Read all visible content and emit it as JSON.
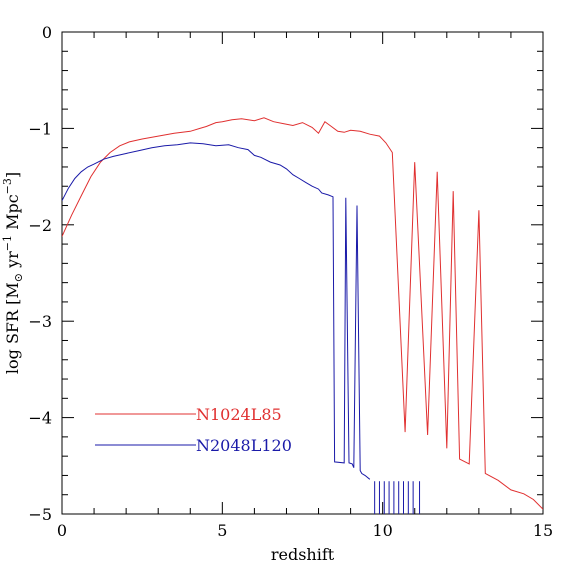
{
  "chart_data": {
    "type": "line",
    "xlabel": "redshift",
    "ylabel_parts": {
      "prefix": "log SFR [M",
      "sub": "⊙",
      "mid1": " yr",
      "sup1": "−1",
      "mid2": " Mpc",
      "sup2": "−3",
      "suffix": "]"
    },
    "xlim": [
      0,
      15
    ],
    "ylim": [
      -5,
      0
    ],
    "xticks": [
      0,
      5,
      10,
      15
    ],
    "yticks": [
      -5,
      -4,
      -3,
      -2,
      -1,
      0
    ],
    "xtick_labels": [
      "0",
      "5",
      "10",
      "15"
    ],
    "ytick_labels": [
      "−5",
      "−4",
      "−3",
      "−2",
      "−1",
      "0"
    ],
    "grid": false,
    "legend_placement": "bottom-left",
    "series": [
      {
        "name": "N1024L85",
        "color": "#e03030",
        "x": [
          0.0,
          0.3,
          0.6,
          0.9,
          1.2,
          1.5,
          1.8,
          2.1,
          2.5,
          3.0,
          3.5,
          4.0,
          4.3,
          4.5,
          4.8,
          5.0,
          5.3,
          5.6,
          6.0,
          6.3,
          6.6,
          6.9,
          7.2,
          7.5,
          7.8,
          8.0,
          8.2,
          8.4,
          8.6,
          8.8,
          9.0,
          9.3,
          9.6,
          9.9,
          10.1,
          10.3,
          10.7,
          11.0,
          11.4,
          11.7,
          12.0,
          12.2,
          12.4,
          12.7,
          13.0,
          13.2,
          13.6,
          14.0,
          14.4,
          14.7,
          15.0
        ],
        "y": [
          -2.12,
          -1.9,
          -1.7,
          -1.5,
          -1.35,
          -1.25,
          -1.18,
          -1.14,
          -1.11,
          -1.08,
          -1.05,
          -1.03,
          -1.0,
          -0.98,
          -0.94,
          -0.93,
          -0.91,
          -0.9,
          -0.92,
          -0.89,
          -0.93,
          -0.95,
          -0.97,
          -0.94,
          -0.99,
          -1.05,
          -0.93,
          -0.98,
          -1.03,
          -1.04,
          -1.02,
          -1.03,
          -1.06,
          -1.08,
          -1.15,
          -1.25,
          -4.15,
          -1.35,
          -4.18,
          -1.45,
          -4.32,
          -1.65,
          -4.43,
          -4.48,
          -1.85,
          -4.58,
          -4.65,
          -4.75,
          -4.79,
          -4.85,
          -4.95
        ]
      },
      {
        "name": "N2048L120",
        "color": "#1a1aa8",
        "x": [
          0.0,
          0.2,
          0.4,
          0.6,
          0.8,
          1.0,
          1.3,
          1.6,
          2.0,
          2.4,
          2.8,
          3.2,
          3.6,
          4.0,
          4.4,
          4.8,
          5.2,
          5.5,
          5.8,
          6.0,
          6.2,
          6.5,
          6.8,
          7.0,
          7.2,
          7.4,
          7.6,
          7.8,
          8.0,
          8.1,
          8.3,
          8.45,
          8.5,
          8.8,
          8.85,
          8.95,
          9.05,
          9.1,
          9.2,
          9.3,
          9.35,
          9.45,
          9.6
        ],
        "y": [
          -1.75,
          -1.62,
          -1.52,
          -1.45,
          -1.4,
          -1.37,
          -1.32,
          -1.29,
          -1.26,
          -1.23,
          -1.2,
          -1.18,
          -1.17,
          -1.15,
          -1.16,
          -1.18,
          -1.17,
          -1.2,
          -1.22,
          -1.28,
          -1.3,
          -1.35,
          -1.38,
          -1.42,
          -1.48,
          -1.52,
          -1.56,
          -1.6,
          -1.63,
          -1.67,
          -1.69,
          -1.71,
          -4.46,
          -4.47,
          -1.72,
          -4.47,
          -4.48,
          -4.52,
          -1.8,
          -4.55,
          -4.58,
          -4.6,
          -4.64
        ]
      }
    ]
  }
}
